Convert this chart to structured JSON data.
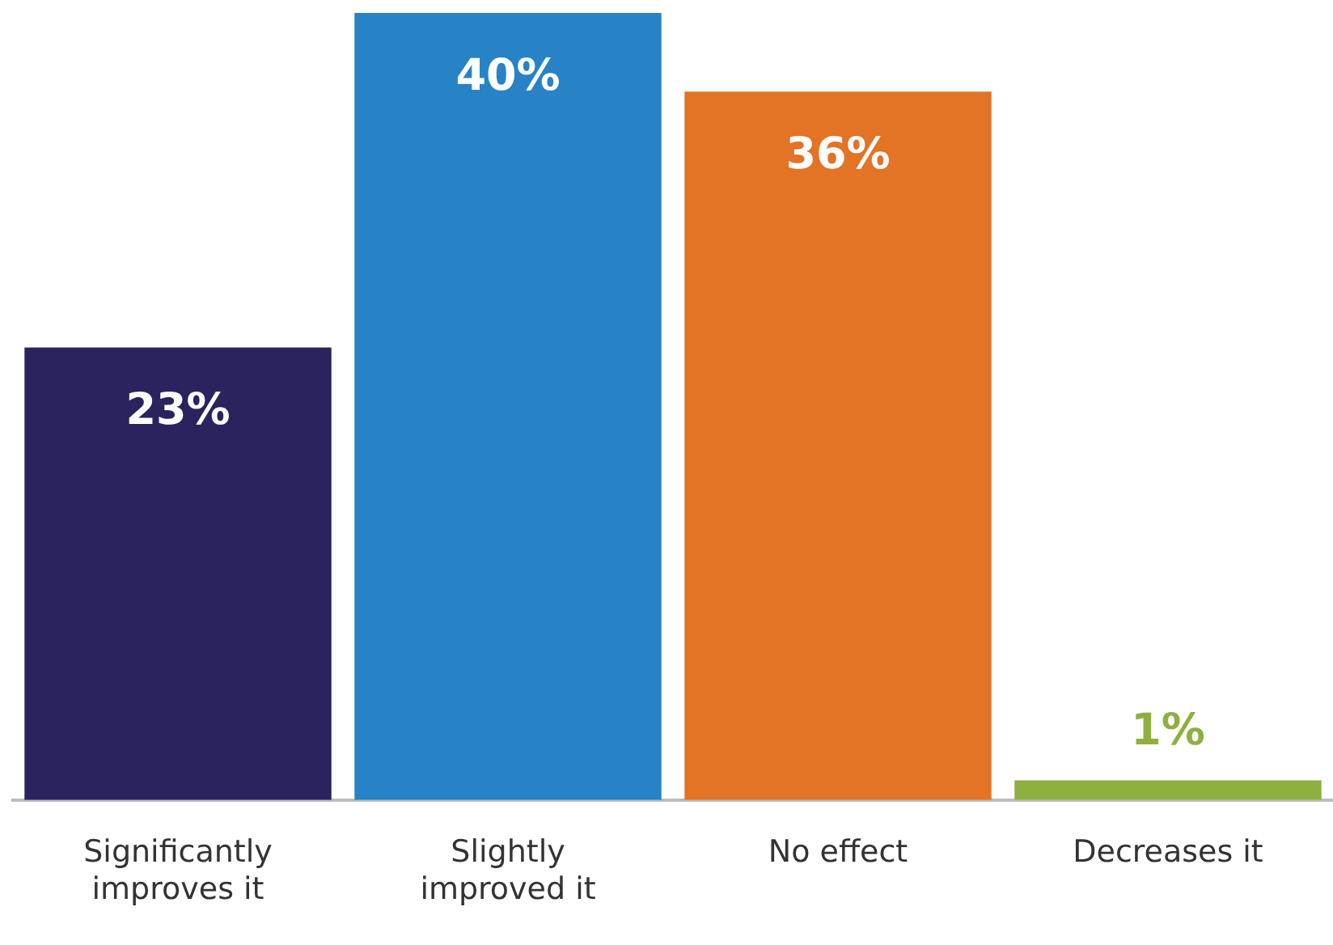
{
  "chart_data": {
    "type": "bar",
    "categories": [
      "Significantly improves it",
      "Slightly improved it",
      "No effect",
      "Decreases it"
    ],
    "values": [
      23,
      40,
      36,
      1
    ],
    "colors": [
      "#2a235e",
      "#2783c6",
      "#e37325",
      "#8db040"
    ],
    "value_labels": [
      "23%",
      "40%",
      "36%",
      "1%"
    ],
    "ylim": [
      0,
      40
    ],
    "grid": false,
    "legend": false
  }
}
